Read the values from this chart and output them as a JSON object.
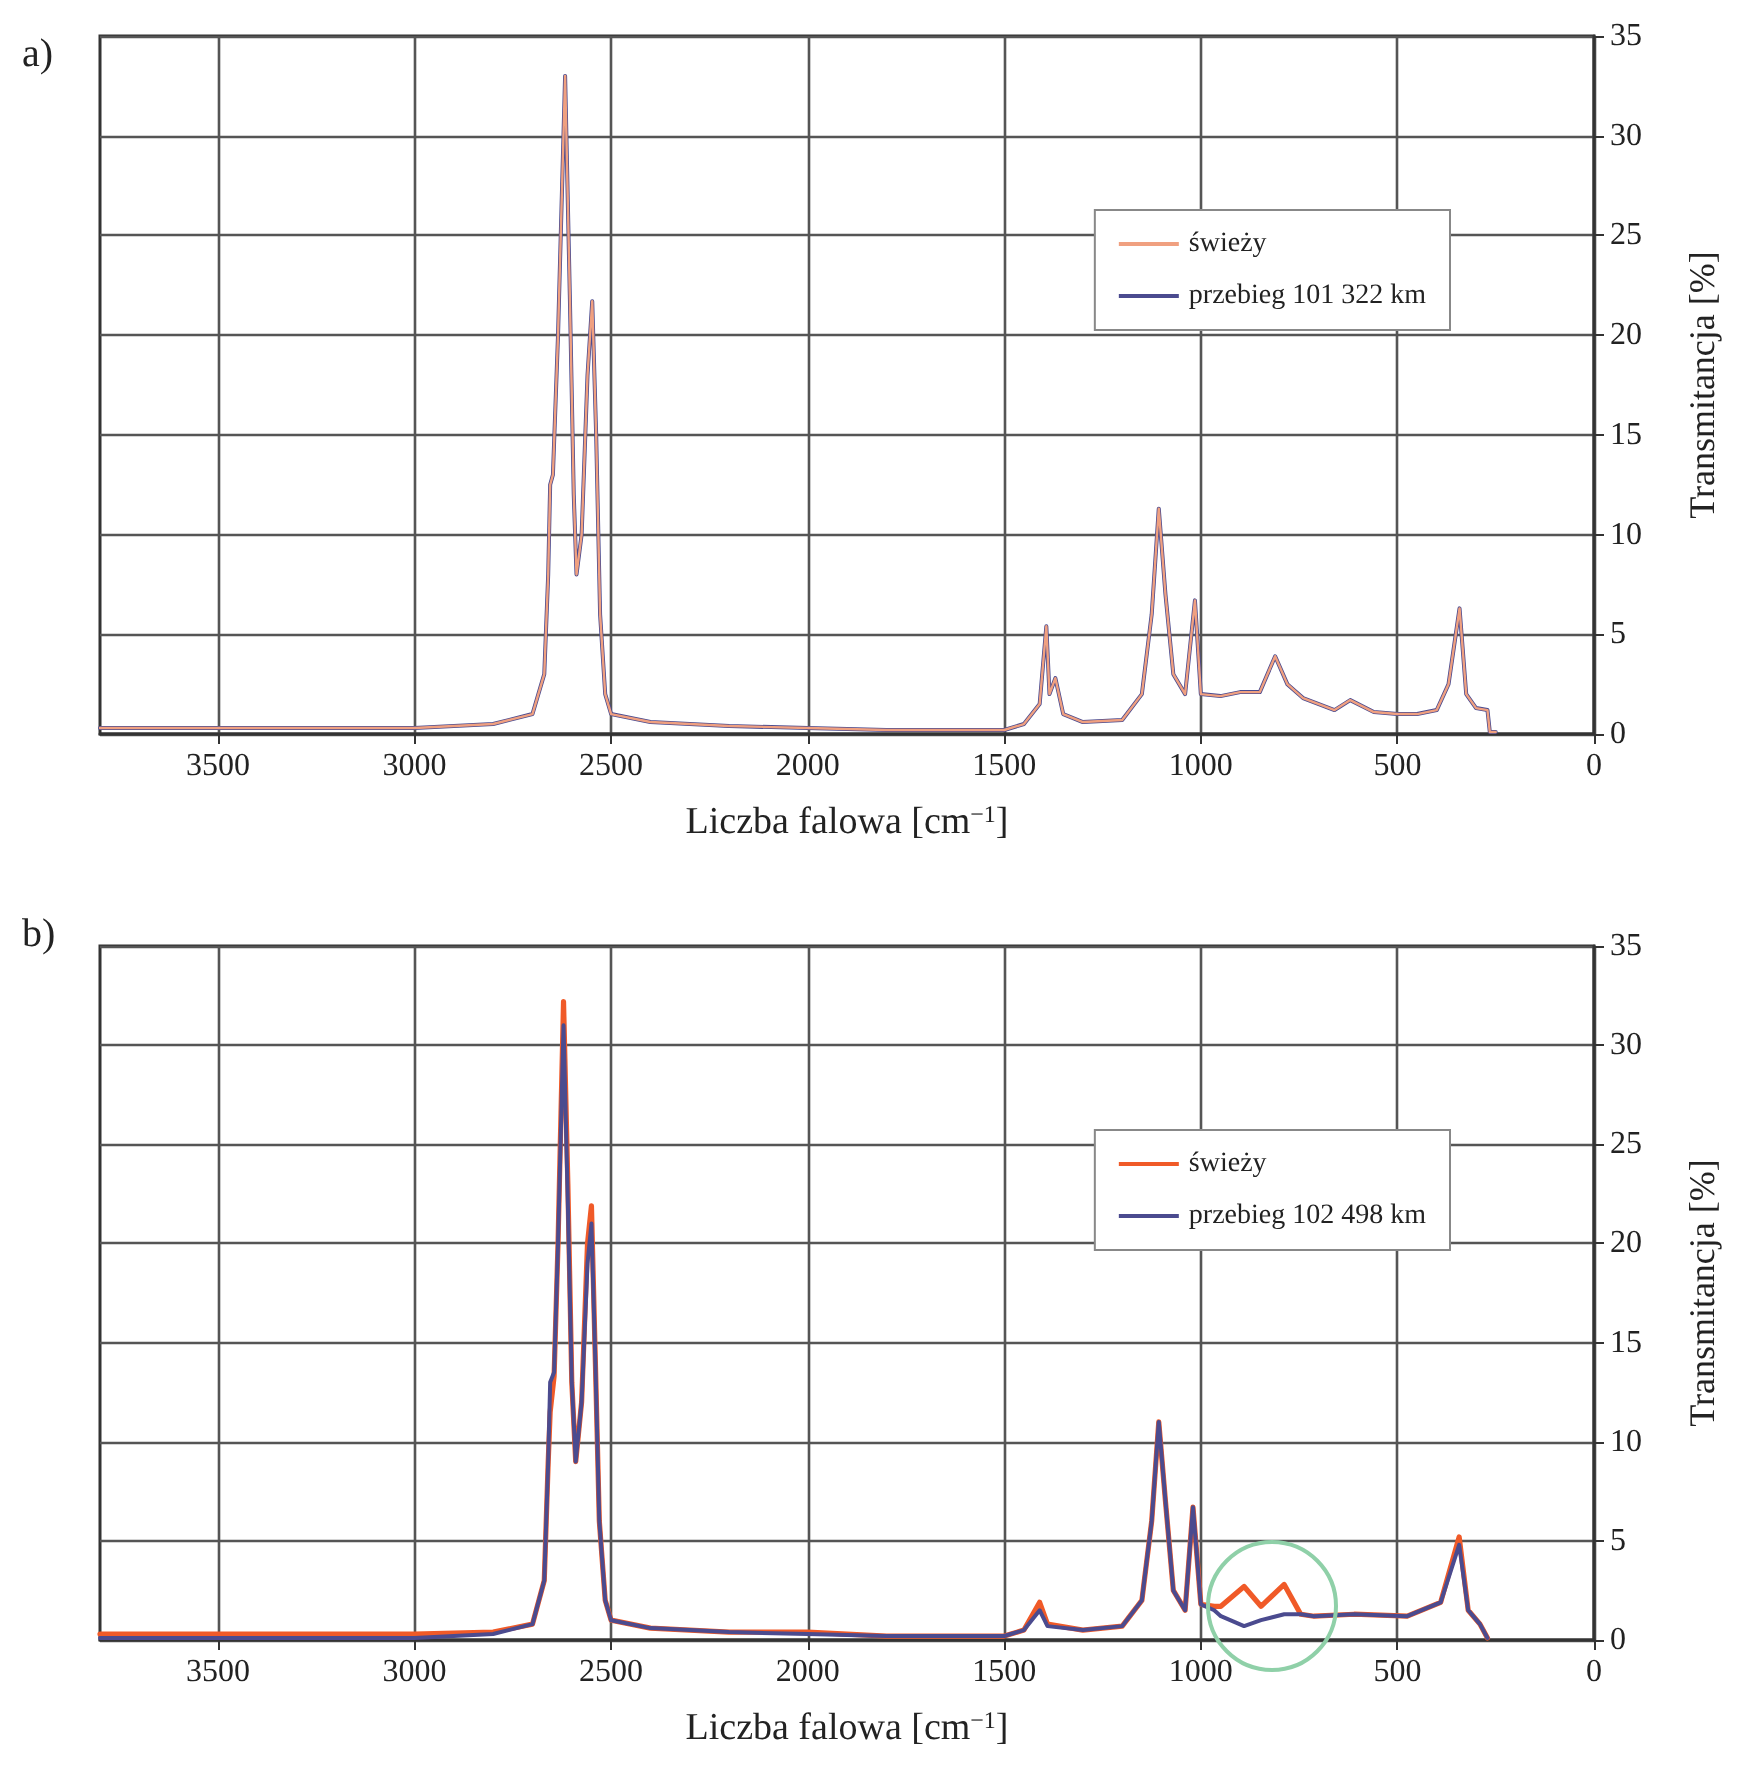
{
  "chart_data": [
    {
      "type": "line",
      "title": "a)",
      "xlabel": "Liczba falowa [cm$^{−1}$]",
      "ylabel": "Transmitancja [%]",
      "x": [
        3800,
        3500,
        3000,
        2800,
        2700,
        2670,
        2660,
        2655,
        2648,
        2635,
        2617,
        2605,
        2595,
        2588,
        2575,
        2560,
        2548,
        2538,
        2528,
        2515,
        2500,
        2400,
        2200,
        2000,
        1800,
        1500,
        1450,
        1410,
        1393,
        1385,
        1370,
        1350,
        1300,
        1200,
        1150,
        1125,
        1107,
        1090,
        1070,
        1040,
        1015,
        1000,
        950,
        900,
        850,
        811,
        780,
        740,
        700,
        660,
        620,
        560,
        500,
        450,
        400,
        370,
        342,
        325,
        300,
        271,
        265,
        250
      ],
      "series": [
        {
          "name": "świeży",
          "color": "#f0a080",
          "values": [
            0.3,
            0.3,
            0.3,
            0.5,
            1,
            3,
            8,
            12.5,
            13,
            20,
            33,
            22,
            12,
            8,
            10,
            18,
            21.7,
            15,
            6,
            2,
            1,
            0.6,
            0.4,
            0.3,
            0.2,
            0.2,
            0.5,
            1.5,
            5.4,
            2,
            2.8,
            1,
            0.6,
            0.7,
            2,
            6,
            11.3,
            7,
            3,
            2,
            6.7,
            2,
            1.9,
            2.1,
            2.1,
            3.9,
            2.5,
            1.8,
            1.5,
            1.2,
            1.7,
            1.1,
            1.0,
            1.0,
            1.2,
            2.5,
            6.3,
            2,
            1.3,
            1.2,
            0.1,
            0.1
          ]
        },
        {
          "name": "przebieg 101 322 km",
          "color": "#4b4b8f",
          "values": [
            0.3,
            0.3,
            0.3,
            0.5,
            1,
            3,
            8,
            12.5,
            13,
            20,
            33,
            22,
            12,
            8,
            10,
            18,
            21.7,
            15,
            6,
            2,
            1,
            0.6,
            0.4,
            0.3,
            0.2,
            0.2,
            0.5,
            1.5,
            5.4,
            2,
            2.8,
            1,
            0.6,
            0.7,
            2,
            6,
            11.3,
            7,
            3,
            2,
            6.7,
            2,
            1.9,
            2.1,
            2.1,
            3.9,
            2.5,
            1.8,
            1.5,
            1.2,
            1.7,
            1.1,
            1.0,
            1.0,
            1.2,
            2.5,
            6.3,
            2,
            1.3,
            1.2,
            0.1,
            0.1
          ]
        }
      ],
      "xlim": [
        3800,
        0
      ],
      "xticks": [
        3500,
        3000,
        2500,
        2000,
        1500,
        1000,
        500,
        0
      ],
      "ylim": [
        0,
        35
      ],
      "yticks": [
        0,
        5,
        10,
        15,
        20,
        25,
        30,
        35
      ],
      "grid": true,
      "legend": "top right",
      "marker": "none",
      "line_style": "solid"
    },
    {
      "type": "line",
      "title": "b)",
      "xlabel": "Liczba falowa [cm$^{−1}$]",
      "ylabel": "Transmitancja [%]",
      "x": [
        3800,
        3500,
        3000,
        2800,
        2700,
        2670,
        2660,
        2655,
        2645,
        2635,
        2621,
        2610,
        2600,
        2590,
        2575,
        2560,
        2550,
        2540,
        2530,
        2515,
        2500,
        2400,
        2200,
        2000,
        1800,
        1500,
        1450,
        1410,
        1390,
        1300,
        1200,
        1150,
        1125,
        1107,
        1090,
        1070,
        1040,
        1020,
        1000,
        966,
        949,
        890,
        847,
        788,
        746,
        712,
        610,
        475,
        390,
        343,
        320,
        290,
        271
      ],
      "series": [
        {
          "name": "świeży",
          "color": "#f05a28",
          "values": [
            0.3,
            0.3,
            0.3,
            0.4,
            0.8,
            3,
            9,
            11.5,
            13.3,
            20,
            32.2,
            23,
            13,
            9,
            12,
            20,
            21.9,
            14,
            6,
            2,
            1,
            0.6,
            0.4,
            0.4,
            0.2,
            0.2,
            0.5,
            1.9,
            0.8,
            0.5,
            0.7,
            2,
            6,
            11,
            7,
            2.5,
            1.5,
            6.7,
            1.8,
            1.7,
            1.7,
            2.7,
            1.7,
            2.8,
            1.3,
            1.2,
            1.3,
            1.2,
            1.9,
            5.2,
            1.5,
            0.8,
            0.1
          ]
        },
        {
          "name": "przebieg 102 498 km",
          "color": "#4b4b8f",
          "values": [
            0.1,
            0.1,
            0.1,
            0.3,
            0.8,
            3,
            9,
            13,
            13.5,
            20,
            31,
            22,
            13,
            9,
            12,
            19,
            21,
            14,
            6,
            2,
            1,
            0.6,
            0.4,
            0.3,
            0.2,
            0.2,
            0.5,
            1.5,
            0.7,
            0.5,
            0.7,
            2,
            6,
            11,
            7,
            2.5,
            1.5,
            6.7,
            1.8,
            1.5,
            1.2,
            0.7,
            1.0,
            1.3,
            1.3,
            1.2,
            1.3,
            1.2,
            1.9,
            4.8,
            1.5,
            0.8,
            0.1
          ]
        }
      ],
      "xlim": [
        3800,
        0
      ],
      "xticks": [
        3500,
        3000,
        2500,
        2000,
        1500,
        1000,
        500,
        0
      ],
      "ylim": [
        0,
        35
      ],
      "yticks": [
        0,
        5,
        10,
        15,
        20,
        25,
        30,
        35
      ],
      "grid": true,
      "legend": "top right",
      "marker": "none",
      "line_style": "solid"
    }
  ]
}
